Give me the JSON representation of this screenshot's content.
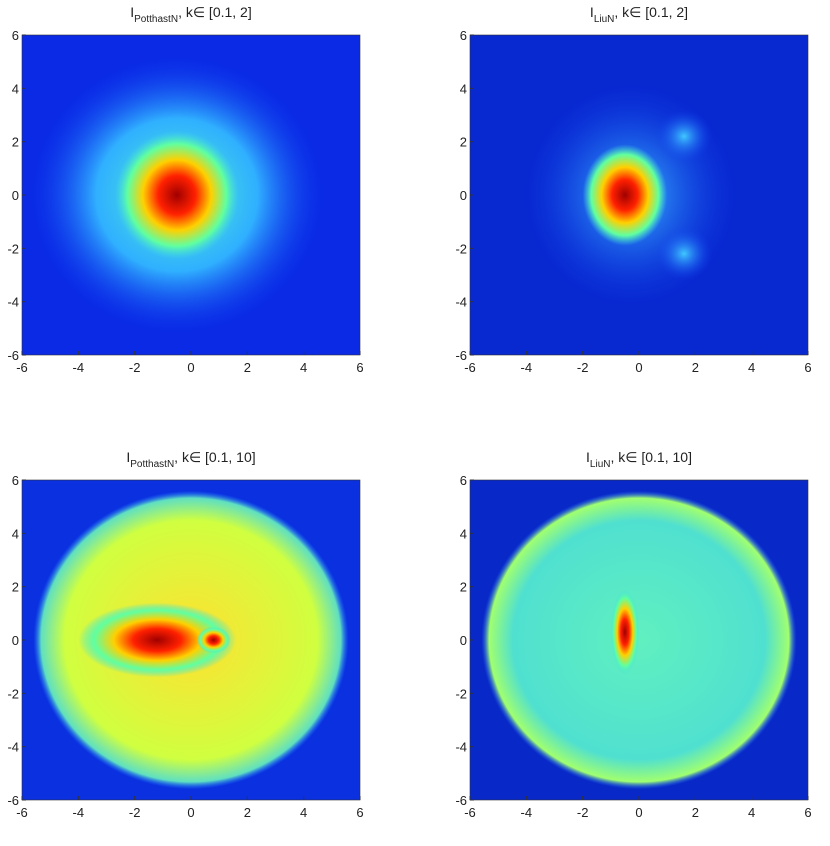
{
  "chart_data": [
    {
      "type": "heatmap",
      "title": {
        "base": "I",
        "subscript": "PotthastN",
        "rest": ", k∈ [0.1,  2]"
      },
      "xlim": [
        -6,
        6
      ],
      "ylim": [
        -6,
        6
      ],
      "xticks": [
        -6,
        -4,
        -2,
        0,
        2,
        4,
        6
      ],
      "yticks": [
        -6,
        -4,
        -2,
        0,
        2,
        4,
        6
      ]
    },
    {
      "type": "heatmap",
      "title": {
        "base": "I",
        "subscript": "LiuN",
        "rest": ", k∈ [0.1,  2]"
      },
      "xlim": [
        -6,
        6
      ],
      "ylim": [
        -6,
        6
      ],
      "xticks": [
        -6,
        -4,
        -2,
        0,
        2,
        4,
        6
      ],
      "yticks": [
        -6,
        -4,
        -2,
        0,
        2,
        4,
        6
      ]
    },
    {
      "type": "heatmap",
      "title": {
        "base": "I",
        "subscript": "PotthastN",
        "rest": ", k∈ [0.1,  10]"
      },
      "xlim": [
        -6,
        6
      ],
      "ylim": [
        -6,
        6
      ],
      "xticks": [
        -6,
        -4,
        -2,
        0,
        2,
        4,
        6
      ],
      "yticks": [
        -6,
        -4,
        -2,
        0,
        2,
        4,
        6
      ]
    },
    {
      "type": "heatmap",
      "title": {
        "base": "I",
        "subscript": "LiuN",
        "rest": ", k∈ [0.1,  10]"
      },
      "xlim": [
        -6,
        6
      ],
      "ylim": [
        -6,
        6
      ],
      "xticks": [
        -6,
        -4,
        -2,
        0,
        2,
        4,
        6
      ],
      "yticks": [
        -6,
        -4,
        -2,
        0,
        2,
        4,
        6
      ]
    }
  ]
}
